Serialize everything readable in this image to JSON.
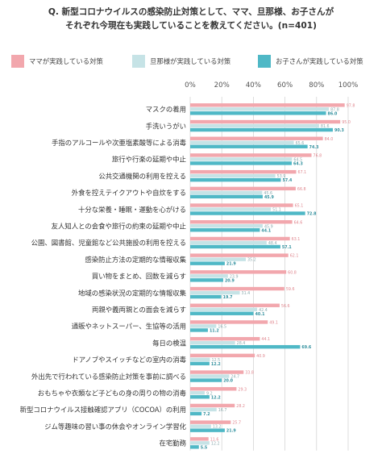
{
  "colors": {
    "mama": "#f2a7ad",
    "papa": "#c6e3e6",
    "child": "#4fb8c6",
    "grid": "#cfcfcf",
    "text": "#333333",
    "tick": "#9a9a9a"
  },
  "chart_data": {
    "type": "bar",
    "orientation": "horizontal",
    "title": "Q. 新型コロナウイルスの感染防止対策として、ママ、旦那様、お子さんが",
    "subtitle": "それぞれ今現在も実践していることを教えてください。(n=401)",
    "xlim": [
      0,
      100
    ],
    "ticks": [
      "0%",
      "20%",
      "40%",
      "60%",
      "80%",
      "100%"
    ],
    "grid": true,
    "legend_position": "top",
    "categories": [
      "マスクの着用",
      "手洗いうがい",
      "手指のアルコールや次亜塩素酸等による消毒",
      "旅行や行楽の延期や中止",
      "公共交通機関の利用を控える",
      "外食を控えテイクアウトや自炊をする",
      "十分な栄養・睡眠・運動を心がける",
      "友人知人との会食や旅行の約束の延期や中止",
      "公園、図書館、児童館など公共施設の利用を控える",
      "感染防止方法の定期的な情報収集",
      "買い物をまとめ、回数を減らす",
      "地域の感染状況の定期的な情報収集",
      "両親や義両親との面会を減らす",
      "通販やネットスーパー、生協等の活用",
      "毎日の検温",
      "ドアノブやスイッチなどの室内の消毒",
      "外出先で行われている感染防止対策を事前に調べる",
      "おもちゃや衣類など子どもの身の周りの物の消毒",
      "新型コロナウイルス接触確認アプリ（COCOA）の利用",
      "ジム等趣味の習い事の休会やオンライン学習化",
      "在宅勤務"
    ],
    "series": [
      {
        "name": "ママが実践している対策",
        "values": [
          97.8,
          95.0,
          84.0,
          76.8,
          67.1,
          66.8,
          65.1,
          64.6,
          63.1,
          62.1,
          60.8,
          59.6,
          56.6,
          49.1,
          44.1,
          40.9,
          33.8,
          29.3,
          28.2,
          25.7,
          11.6
        ]
      },
      {
        "name": "旦那様が実践している対策",
        "values": [
          87.8,
          81.6,
          65.6,
          64.5,
          53.9,
          45.6,
          51.1,
          45.9,
          48.4,
          35.2,
          23.9,
          31.4,
          42.4,
          16.5,
          28.4,
          12.5,
          24.7,
          9.2,
          16.7,
          13.2,
          12.2
        ]
      },
      {
        "name": "お子さんが実践している対策",
        "values": [
          86.0,
          90.3,
          74.3,
          64.3,
          57.4,
          45.9,
          72.8,
          44.1,
          57.1,
          21.9,
          20.9,
          19.7,
          40.1,
          11.2,
          69.6,
          12.2,
          20.0,
          12.2,
          7.2,
          21.9,
          5.5
        ]
      }
    ]
  }
}
